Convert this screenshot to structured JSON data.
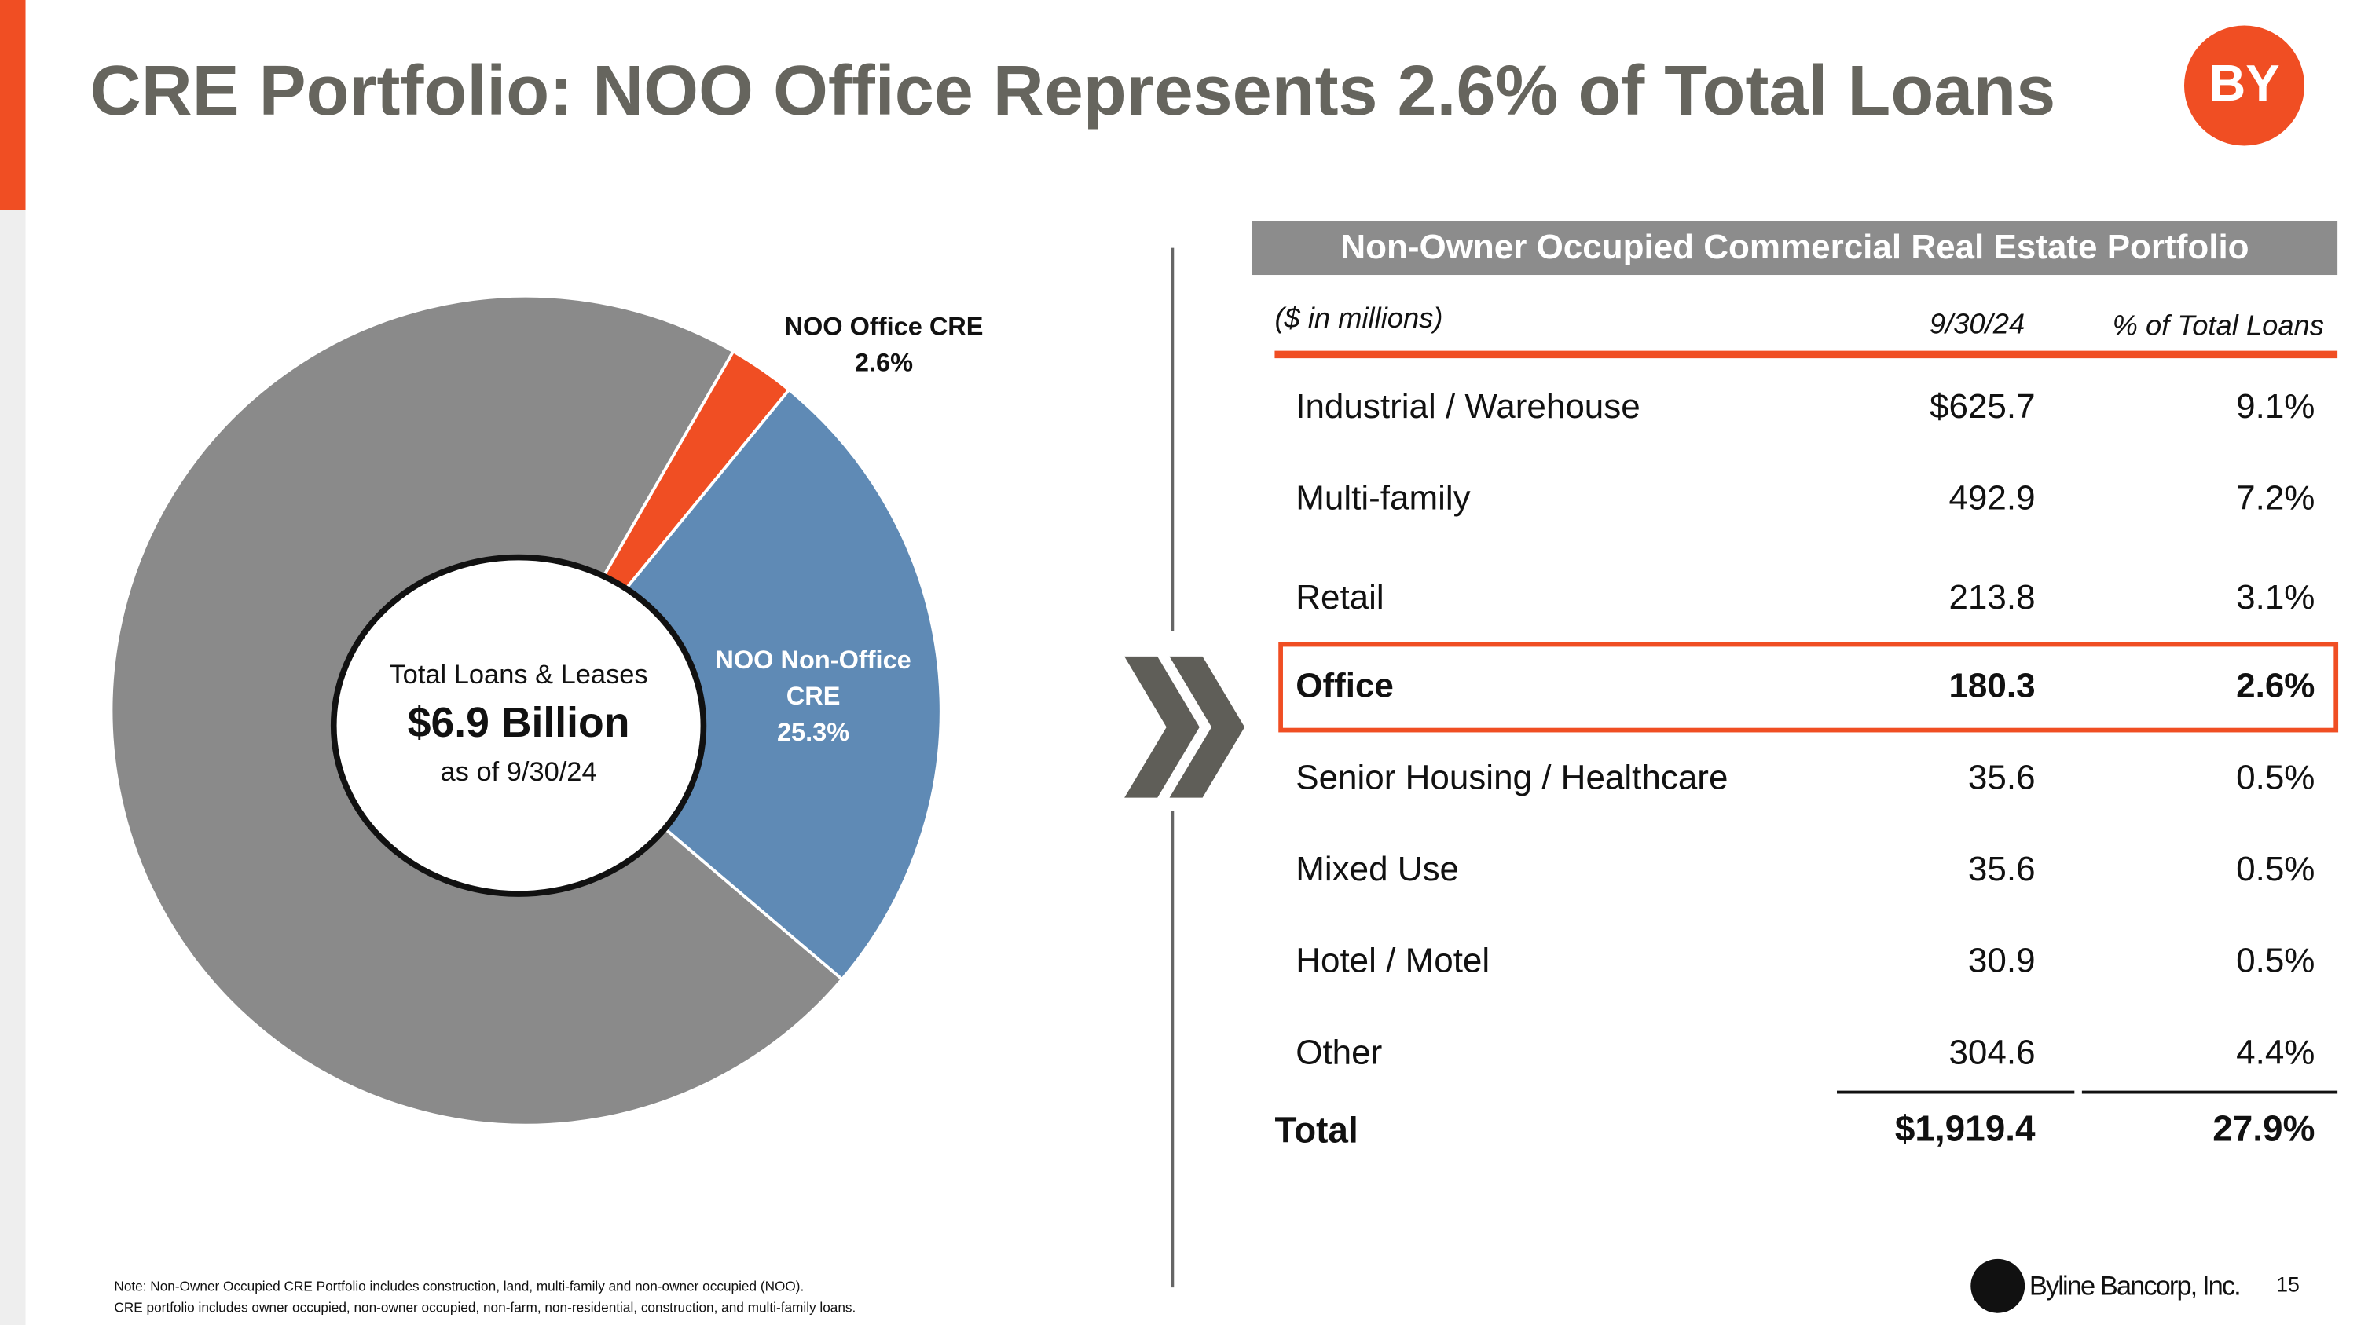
{
  "title": "CRE Portfolio: NOO Office Represents 2.6% of Total Loans",
  "logo": "BY",
  "chart_data": {
    "type": "pie",
    "categories": [
      null,
      "NOO Office CRE",
      "NOO Non-Office CRE"
    ],
    "values": [
      72.1,
      2.6,
      25.3
    ],
    "value_labels": [
      null,
      "2.6%",
      "25.3%"
    ],
    "colors": [
      "#8a8a8a",
      "#f04e23",
      "#5f8ab5"
    ],
    "center_text": [
      "Total Loans & Leases",
      "$6.9 Billion",
      "as of 9/30/24"
    ]
  },
  "table": {
    "title": "Non-Owner Occupied Commercial Real Estate Portfolio",
    "columns": [
      "($ in millions)",
      "9/30/24",
      "% of Total Loans"
    ],
    "rows": [
      [
        "Industrial / Warehouse",
        "$625.7",
        "9.1%"
      ],
      [
        "Multi-family",
        "492.9",
        "7.2%"
      ],
      [
        "Retail",
        "213.8",
        "3.1%"
      ],
      [
        "Office",
        "180.3",
        "2.6%"
      ],
      [
        "Senior Housing / Healthcare",
        "35.6",
        "0.5%"
      ],
      [
        "Mixed Use",
        "35.6",
        "0.5%"
      ],
      [
        "Hotel / Motel",
        "30.9",
        "0.5%"
      ],
      [
        "Other",
        "304.6",
        "4.4%"
      ]
    ],
    "total": [
      "Total",
      "$1,919.4",
      "27.9%"
    ]
  },
  "notes": [
    "Note: Non-Owner Occupied CRE Portfolio includes construction, land, multi-family and non-owner occupied (NOO).",
    "CRE portfolio includes owner occupied, non-owner occupied, non-farm, non-residential, construction, and multi-family loans."
  ],
  "footer": {
    "company": "Byline Bancorp, Inc.",
    "page": "15"
  }
}
